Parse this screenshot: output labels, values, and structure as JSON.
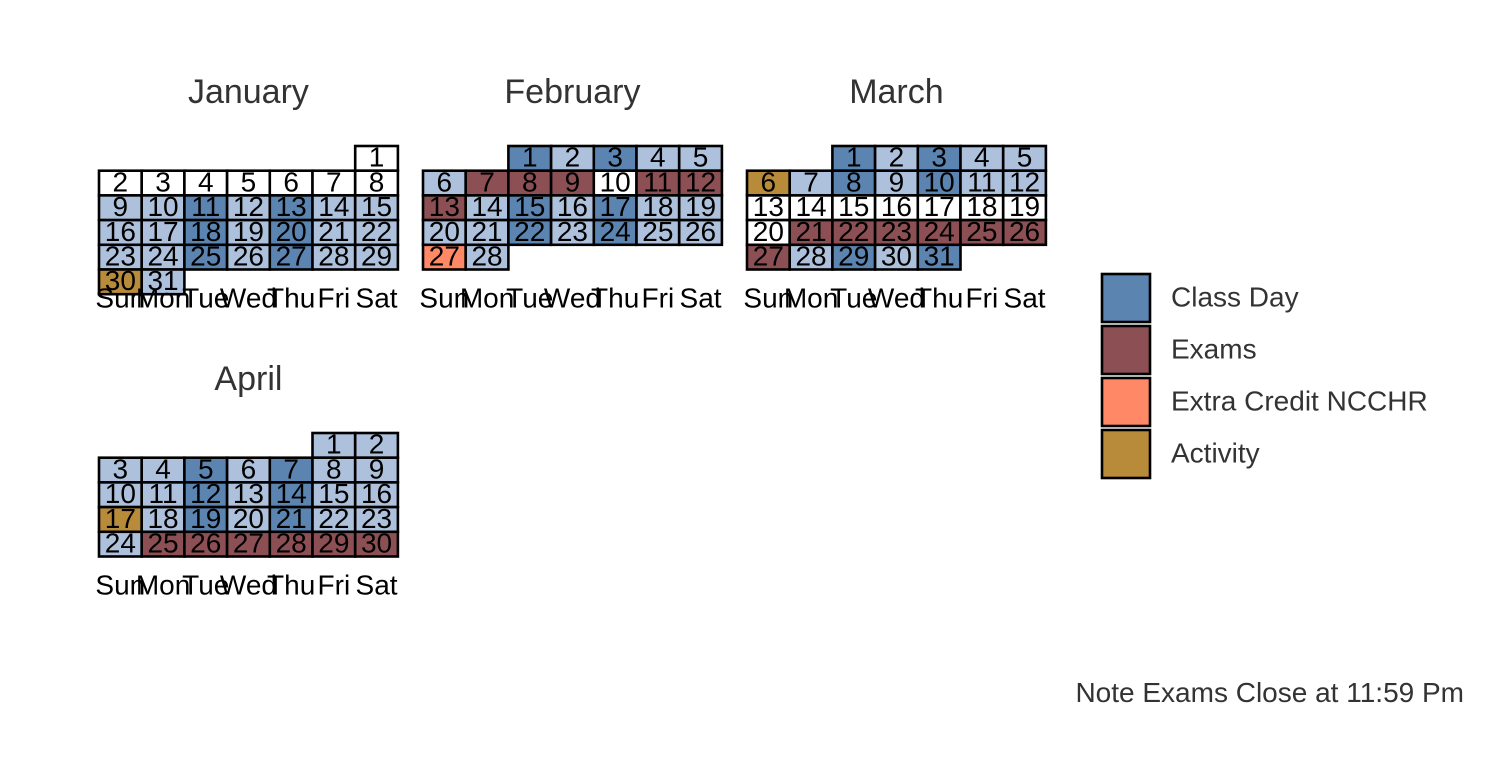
{
  "chart_data": {
    "type": "heatmap",
    "caption": "Note Exams Close at 11:59 Pm",
    "weekdays": [
      "Sun",
      "Mon",
      "Tue",
      "Wed",
      "Thu",
      "Fri",
      "Sat"
    ],
    "colors": {
      "class_day": "#5b84b1",
      "exams": "#8c4f54",
      "extra_credit": "#ff8866",
      "activity": "#b88b3a",
      "light": "#aec1dc",
      "none": "#ffffff",
      "grid": "#000000",
      "text": "#333333"
    },
    "legend": {
      "placement": "right",
      "items": [
        {
          "key": "class_day",
          "label": "Class Day"
        },
        {
          "key": "exams",
          "label": "Exams"
        },
        {
          "key": "extra_credit",
          "label": "Extra Credit NCCHR"
        },
        {
          "key": "activity",
          "label": "Activity"
        }
      ]
    },
    "months": [
      {
        "name": "January",
        "first_weekday": 6,
        "days": 31,
        "categories": {
          "light": [
            9,
            10,
            12,
            14,
            15,
            16,
            17,
            19,
            21,
            22,
            23,
            24,
            26,
            28,
            29,
            31
          ],
          "class_day": [
            11,
            13,
            18,
            20,
            25,
            27
          ],
          "activity": [
            30
          ]
        }
      },
      {
        "name": "February",
        "first_weekday": 2,
        "days": 28,
        "categories": {
          "class_day": [
            1,
            3,
            8,
            15,
            17,
            22,
            24
          ],
          "light": [
            2,
            4,
            5,
            6,
            14,
            16,
            18,
            19,
            20,
            21,
            23,
            25,
            26,
            28
          ],
          "exams": [
            7,
            8,
            9,
            11,
            12,
            13
          ],
          "extra_credit": [
            27
          ]
        }
      },
      {
        "name": "March",
        "first_weekday": 2,
        "days": 31,
        "categories": {
          "class_day": [
            1,
            3,
            8,
            10,
            29,
            31
          ],
          "light": [
            2,
            4,
            5,
            7,
            9,
            11,
            12,
            28,
            30
          ],
          "activity": [
            6
          ],
          "exams": [
            21,
            22,
            23,
            24,
            25,
            26,
            27
          ]
        }
      },
      {
        "name": "April",
        "first_weekday": 5,
        "days": 30,
        "categories": {
          "light": [
            1,
            2,
            3,
            4,
            6,
            8,
            9,
            10,
            11,
            13,
            15,
            16,
            18,
            20,
            22,
            23,
            24
          ],
          "class_day": [
            5,
            7,
            12,
            14,
            19,
            21
          ],
          "activity": [
            17
          ],
          "exams": [
            25,
            26,
            27,
            28,
            29,
            30
          ]
        }
      }
    ]
  }
}
